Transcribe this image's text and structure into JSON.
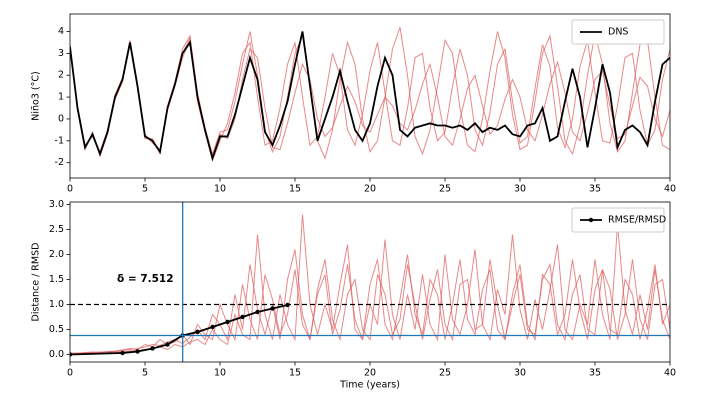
{
  "chart_data": [
    {
      "type": "line",
      "ylabel": "Niño3 (°C)",
      "x": [
        0,
        0.5,
        1,
        1.5,
        2,
        2.5,
        3,
        3.5,
        4,
        4.5,
        5,
        5.5,
        6,
        6.5,
        7,
        7.5,
        8,
        8.5,
        9,
        9.5,
        10,
        10.5,
        11,
        11.5,
        12,
        12.5,
        13,
        13.5,
        14,
        14.5,
        15,
        15.5,
        16,
        16.5,
        17,
        17.5,
        18,
        18.5,
        19,
        19.5,
        20,
        20.5,
        21,
        21.5,
        22,
        22.5,
        23,
        23.5,
        24,
        24.5,
        25,
        25.5,
        26,
        26.5,
        27,
        27.5,
        28,
        28.5,
        29,
        29.5,
        30,
        30.5,
        31,
        31.5,
        32,
        32.5,
        33,
        33.5,
        34,
        34.5,
        35,
        35.5,
        36,
        36.5,
        37,
        37.5,
        38,
        38.5,
        39,
        39.5,
        40
      ],
      "xlim": [
        0,
        40
      ],
      "xticks": [
        0,
        5,
        10,
        15,
        20,
        25,
        30,
        35,
        40
      ],
      "ylim": [
        -2.7,
        4.8
      ],
      "yticks": [
        -2,
        -1,
        0,
        1,
        2,
        3,
        4
      ],
      "legend": "upper right",
      "series": [
        {
          "color": "#e06060",
          "values": [
            3.2,
            0.6,
            -1.2,
            -0.8,
            -1.5,
            -0.5,
            1.1,
            1.9,
            3.6,
            1.6,
            -0.7,
            -1.1,
            -1.4,
            0.6,
            1.7,
            3.2,
            3.8,
            1.2,
            -0.4,
            -1.6,
            -0.6,
            -0.5,
            0.8,
            2.5,
            4.0,
            2.0,
            -0.5,
            -1.5,
            -0.8,
            1.0,
            3.0,
            3.8,
            1.5,
            -1.0,
            -1.8,
            -0.5,
            1.8,
            3.5,
            2.5,
            0.0,
            -1.5,
            -1.0,
            1.0,
            3.2,
            4.2,
            2.0,
            -0.8,
            -1.6,
            -0.5,
            1.5,
            3.6,
            3.0,
            0.5,
            -1.2,
            -1.5,
            0.0,
            2.2,
            4.0,
            2.8,
            0.2,
            -1.4,
            -1.2,
            0.8,
            3.0,
            3.8,
            1.5,
            -1.0,
            -1.6,
            -0.3,
            2.0,
            3.9,
            2.5,
            -0.2,
            -1.5,
            -1.0,
            1.2,
            3.4,
            3.6,
            1.0,
            -1.2,
            -1.4
          ]
        },
        {
          "color": "#e06060",
          "values": [
            3.4,
            0.4,
            -1.4,
            -0.6,
            -1.7,
            -0.7,
            0.9,
            1.7,
            3.4,
            1.4,
            -0.9,
            -0.9,
            -1.6,
            0.4,
            1.5,
            2.8,
            3.6,
            0.8,
            -0.6,
            -1.9,
            -1.0,
            -0.2,
            1.2,
            3.0,
            3.5,
            1.0,
            -1.2,
            -1.0,
            0.5,
            2.5,
            3.5,
            1.0,
            -1.2,
            -0.8,
            1.0,
            3.0,
            2.0,
            -0.5,
            -1.2,
            0.2,
            2.2,
            3.5,
            1.2,
            -1.0,
            -1.2,
            0.5,
            2.8,
            3.0,
            0.5,
            -1.0,
            -0.6,
            1.5,
            3.2,
            2.0,
            -0.5,
            -1.2,
            0.3,
            2.5,
            3.2,
            0.8,
            -1.1,
            -0.8,
            1.4,
            3.4,
            2.4,
            -0.4,
            -1.3,
            0.0,
            2.4,
            3.6,
            1.2,
            -1.0,
            -1.1,
            0.6,
            2.8,
            3.0,
            0.4,
            -1.2,
            -0.5,
            1.8,
            3.2
          ]
        },
        {
          "color": "#e06060",
          "values": [
            3.3,
            0.5,
            -1.3,
            -0.7,
            -1.6,
            -0.6,
            1.0,
            1.8,
            3.5,
            1.5,
            -0.8,
            -1.0,
            -1.5,
            0.5,
            1.6,
            3.0,
            3.7,
            1.0,
            -0.5,
            -1.7,
            -0.7,
            -0.9,
            0.0,
            1.8,
            3.2,
            2.8,
            0.5,
            -1.3,
            -1.4,
            -0.2,
            1.2,
            2.5,
            1.8,
            0.0,
            -0.8,
            -0.4,
            0.6,
            1.5,
            0.8,
            -0.3,
            -0.6,
            0.2,
            1.0,
            0.6,
            -0.2,
            -0.5,
            0.4,
            1.6,
            2.5,
            1.0,
            -0.8,
            -1.2,
            0.0,
            1.4,
            2.0,
            0.6,
            -0.7,
            -0.3,
            0.9,
            1.8,
            1.0,
            -0.5,
            -1.0,
            0.2,
            1.6,
            2.6,
            1.2,
            -0.6,
            -1.0,
            0.3,
            1.8,
            2.2,
            0.6,
            -0.9,
            -0.7,
            0.6,
            1.9,
            1.5,
            0.0,
            -0.8,
            0.4
          ]
        },
        {
          "name": "DNS",
          "color": "#000000",
          "values": [
            3.3,
            0.5,
            -1.3,
            -0.7,
            -1.6,
            -0.6,
            1.0,
            1.8,
            3.5,
            1.5,
            -0.8,
            -1.0,
            -1.5,
            0.5,
            1.6,
            3.0,
            3.5,
            1.0,
            -0.5,
            -1.8,
            -0.8,
            -0.8,
            0.2,
            1.5,
            2.8,
            1.8,
            -0.6,
            -1.2,
            -0.3,
            0.8,
            2.5,
            4.0,
            1.5,
            -1.0,
            0.0,
            1.0,
            2.2,
            0.8,
            -0.5,
            -1.0,
            -0.2,
            1.5,
            2.8,
            2.0,
            -0.5,
            -0.8,
            -0.4,
            -0.3,
            -0.2,
            -0.3,
            -0.3,
            -0.4,
            -0.3,
            -0.5,
            -0.2,
            -0.6,
            -0.4,
            -0.5,
            -0.3,
            -0.7,
            -0.8,
            -0.3,
            -0.2,
            0.5,
            -1.0,
            -0.8,
            0.8,
            2.3,
            1.0,
            -1.3,
            0.5,
            2.5,
            1.2,
            -1.3,
            -0.5,
            -0.3,
            -0.6,
            -1.2,
            0.8,
            2.5,
            2.8
          ]
        }
      ]
    },
    {
      "type": "line",
      "xlabel": "Time (years)",
      "ylabel": "Distance / RMSD",
      "x": [
        0,
        0.5,
        1,
        1.5,
        2,
        2.5,
        3,
        3.5,
        4,
        4.5,
        5,
        5.5,
        6,
        6.5,
        7,
        7.5,
        8,
        8.5,
        9,
        9.5,
        10,
        10.5,
        11,
        11.5,
        12,
        12.5,
        13,
        13.5,
        14,
        14.5,
        15,
        15.5,
        16,
        16.5,
        17,
        17.5,
        18,
        18.5,
        19,
        19.5,
        20,
        20.5,
        21,
        21.5,
        22,
        22.5,
        23,
        23.5,
        24,
        24.5,
        25,
        25.5,
        26,
        26.5,
        27,
        27.5,
        28,
        28.5,
        29,
        29.5,
        30,
        30.5,
        31,
        31.5,
        32,
        32.5,
        33,
        33.5,
        34,
        34.5,
        35,
        35.5,
        36,
        36.5,
        37,
        37.5,
        38,
        38.5,
        39,
        39.5,
        40
      ],
      "xlim": [
        0,
        40
      ],
      "xticks": [
        0,
        5,
        10,
        15,
        20,
        25,
        30,
        35,
        40
      ],
      "ylim": [
        -0.15,
        3.05
      ],
      "yticks": [
        {
          "value": 0,
          "label": "0.0"
        },
        {
          "value": 0.5,
          "label": "0.5"
        },
        {
          "value": 1,
          "label": "1.0"
        },
        {
          "value": 1.5,
          "label": "1.5"
        },
        {
          "value": 2,
          "label": "2.0"
        },
        {
          "value": 2.5,
          "label": "2.5"
        },
        {
          "value": 3,
          "label": "3.0"
        }
      ],
      "legend": "upper right",
      "annotation": "δ = 7.512",
      "hlines": [
        {
          "value": 1.0,
          "color": "#000000",
          "style": "dashed"
        },
        {
          "value": 0.38,
          "color": "#1f77b4"
        }
      ],
      "vlines": [
        {
          "value": 7.512,
          "color": "#1f77b4"
        }
      ],
      "series": [
        {
          "color": "#e06060",
          "values": [
            0.02,
            0.03,
            0.03,
            0.04,
            0.05,
            0.05,
            0.06,
            0.08,
            0.1,
            0.12,
            0.15,
            0.2,
            0.18,
            0.25,
            0.3,
            0.22,
            0.35,
            0.5,
            0.3,
            0.8,
            0.6,
            0.3,
            1.2,
            0.5,
            1.8,
            0.9,
            0.4,
            1.0,
            0.3,
            1.5,
            2.1,
            0.8,
            0.3,
            1.2,
            1.6,
            0.4,
            0.9,
            1.8,
            0.7,
            0.3,
            1.4,
            1.9,
            0.6,
            0.3,
            1.1,
            2.0,
            0.8,
            0.4,
            1.5,
            1.2,
            0.3,
            1.0,
            1.9,
            0.7,
            0.4,
            1.3,
            1.7,
            0.5,
            0.3,
            1.2,
            1.8,
            0.6,
            0.3,
            1.6,
            1.4,
            0.4,
            0.8,
            1.9,
            0.9,
            0.3,
            1.3,
            1.7,
            0.5,
            0.4,
            1.5,
            1.2,
            0.3,
            0.9,
            1.8,
            0.6,
            1.0
          ]
        },
        {
          "color": "#e06060",
          "values": [
            0.03,
            0.02,
            0.04,
            0.05,
            0.04,
            0.06,
            0.07,
            0.09,
            0.12,
            0.1,
            0.2,
            0.15,
            0.3,
            0.2,
            0.25,
            0.4,
            0.2,
            0.6,
            0.4,
            0.3,
            1.0,
            0.6,
            0.3,
            1.4,
            0.7,
            0.3,
            1.6,
            1.1,
            0.4,
            0.8,
            1.7,
            0.6,
            0.3,
            1.3,
            1.9,
            0.7,
            0.3,
            1.2,
            1.5,
            0.5,
            0.3,
            1.6,
            1.2,
            0.4,
            0.7,
            1.8,
            1.0,
            0.3,
            1.1,
            1.7,
            0.6,
            0.3,
            1.4,
            1.5,
            0.5,
            0.6,
            1.9,
            1.0,
            0.3,
            1.0,
            1.6,
            0.5,
            0.4,
            1.5,
            1.8,
            0.6,
            0.3,
            1.2,
            1.6,
            0.5,
            0.4,
            1.7,
            1.3,
            0.3,
            0.8,
            1.9,
            0.7,
            0.3,
            1.4,
            1.5,
            0.5
          ]
        },
        {
          "color": "#e06060",
          "values": [
            0.01,
            0.02,
            0.02,
            0.03,
            0.03,
            0.04,
            0.05,
            0.05,
            0.07,
            0.08,
            0.1,
            0.12,
            0.15,
            0.1,
            0.2,
            0.15,
            0.25,
            0.3,
            0.2,
            0.5,
            0.3,
            0.2,
            0.8,
            0.4,
            0.3,
            2.4,
            0.8,
            0.3,
            1.2,
            0.6,
            0.3,
            2.8,
            1.0,
            0.4,
            1.0,
            0.5,
            1.4,
            2.2,
            0.5,
            0.3,
            1.0,
            0.6,
            2.3,
            0.8,
            0.3,
            1.2,
            0.5,
            1.6,
            0.6,
            0.3,
            2.0,
            0.7,
            0.4,
            1.0,
            2.1,
            0.6,
            0.3,
            1.3,
            0.8,
            2.4,
            0.9,
            0.3,
            1.1,
            0.5,
            1.3,
            2.2,
            0.5,
            0.3,
            1.0,
            0.6,
            1.9,
            0.8,
            0.3,
            2.6,
            0.9,
            0.4,
            1.2,
            0.5,
            1.7,
            0.7,
            0.3
          ]
        },
        {
          "name": "RMSE/RMSD",
          "color": "#000000",
          "marker": "circle",
          "x": [
            0,
            3.5,
            4.5,
            5.5,
            6.5,
            7.5,
            8.5,
            9.5,
            10.5,
            11.5,
            12.5,
            13.5,
            14.5
          ],
          "values": [
            0.0,
            0.03,
            0.06,
            0.12,
            0.2,
            0.38,
            0.45,
            0.55,
            0.65,
            0.75,
            0.85,
            0.92,
            0.99
          ]
        }
      ]
    }
  ]
}
